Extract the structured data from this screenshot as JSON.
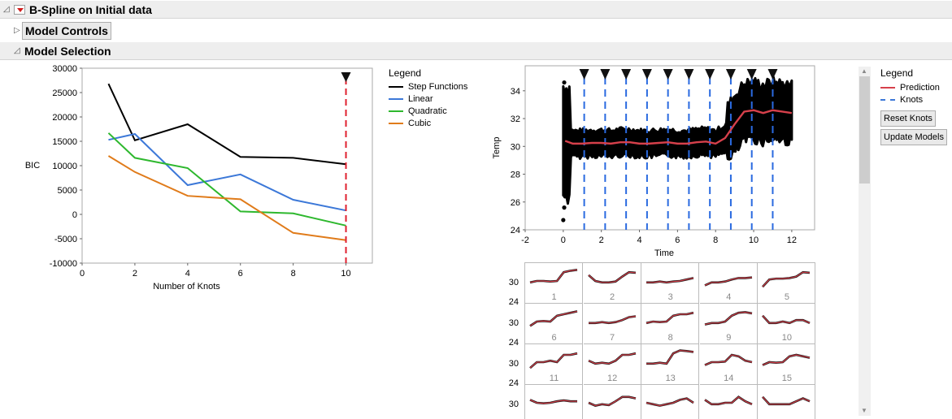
{
  "report": {
    "title": "B-Spline on Initial data",
    "model_controls_label": "Model Controls",
    "model_selection_label": "Model Selection"
  },
  "bic_chart": {
    "chart_data": {
      "type": "line",
      "xlabel": "Number of Knots",
      "ylabel": "BIC",
      "xlim": [
        0,
        11
      ],
      "ylim": [
        -10000,
        30000
      ],
      "x_ticks": [
        "0",
        "2",
        "4",
        "6",
        "8",
        "10"
      ],
      "y_ticks": [
        "30000",
        "25000",
        "20000",
        "15000",
        "10000",
        "5000",
        "0",
        "-5000",
        "-10000"
      ],
      "x": [
        1,
        2,
        4,
        6,
        8,
        10
      ],
      "series": [
        {
          "name": "Step Functions",
          "color": "#000000",
          "values": [
            26800,
            15200,
            18500,
            11800,
            11600,
            10300
          ]
        },
        {
          "name": "Linear",
          "color": "#3c78d8",
          "values": [
            15300,
            16500,
            6000,
            8200,
            3000,
            800
          ]
        },
        {
          "name": "Quadratic",
          "color": "#2eb82e",
          "values": [
            16700,
            11600,
            9500,
            600,
            200,
            -2300
          ]
        },
        {
          "name": "Cubic",
          "color": "#e07b1a",
          "values": [
            12000,
            8700,
            3800,
            3100,
            -3800,
            -5300
          ]
        }
      ],
      "selected_x": 10,
      "selected_color": "#e0202f"
    },
    "legend_title": "Legend"
  },
  "fit_chart": {
    "chart_data": {
      "type": "scatter",
      "xlabel": "Time",
      "ylabel": "Temp",
      "xlim": [
        -2,
        13.2
      ],
      "ylim": [
        24,
        35.8
      ],
      "x_ticks": [
        "-2",
        "0",
        "2",
        "4",
        "6",
        "8",
        "10",
        "12"
      ],
      "y_ticks": [
        "34",
        "32",
        "30",
        "28",
        "26",
        "24"
      ],
      "knots": [
        1.1,
        2.2,
        3.3,
        4.4,
        5.5,
        6.6,
        7.7,
        8.8,
        9.9,
        11.0
      ],
      "prediction": {
        "name": "Prediction",
        "color": "#d6404b",
        "x": [
          0.1,
          0.5,
          1.0,
          1.5,
          2.0,
          2.5,
          3.0,
          3.5,
          4.0,
          4.5,
          5.0,
          5.5,
          6.0,
          6.5,
          7.0,
          7.5,
          8.0,
          8.5,
          9.0,
          9.5,
          10.0,
          10.5,
          11.0,
          11.5,
          12.0
        ],
        "y": [
          30.4,
          30.2,
          30.2,
          30.25,
          30.25,
          30.2,
          30.3,
          30.3,
          30.2,
          30.2,
          30.25,
          30.3,
          30.2,
          30.2,
          30.3,
          30.35,
          30.2,
          30.6,
          31.6,
          32.5,
          32.6,
          32.4,
          32.6,
          32.5,
          32.4
        ]
      }
    },
    "legend_title": "Legend",
    "legend_items": [
      "Prediction",
      "Knots"
    ],
    "reset_button": "Reset Knots",
    "update_button": "Update Models"
  },
  "small_multiples": {
    "y_ticks": [
      "30",
      "24",
      "30",
      "24",
      "30",
      "24",
      "30"
    ],
    "labels": [
      "1",
      "2",
      "3",
      "4",
      "5",
      "6",
      "7",
      "8",
      "9",
      "10",
      "11",
      "12",
      "13",
      "14",
      "15"
    ]
  }
}
